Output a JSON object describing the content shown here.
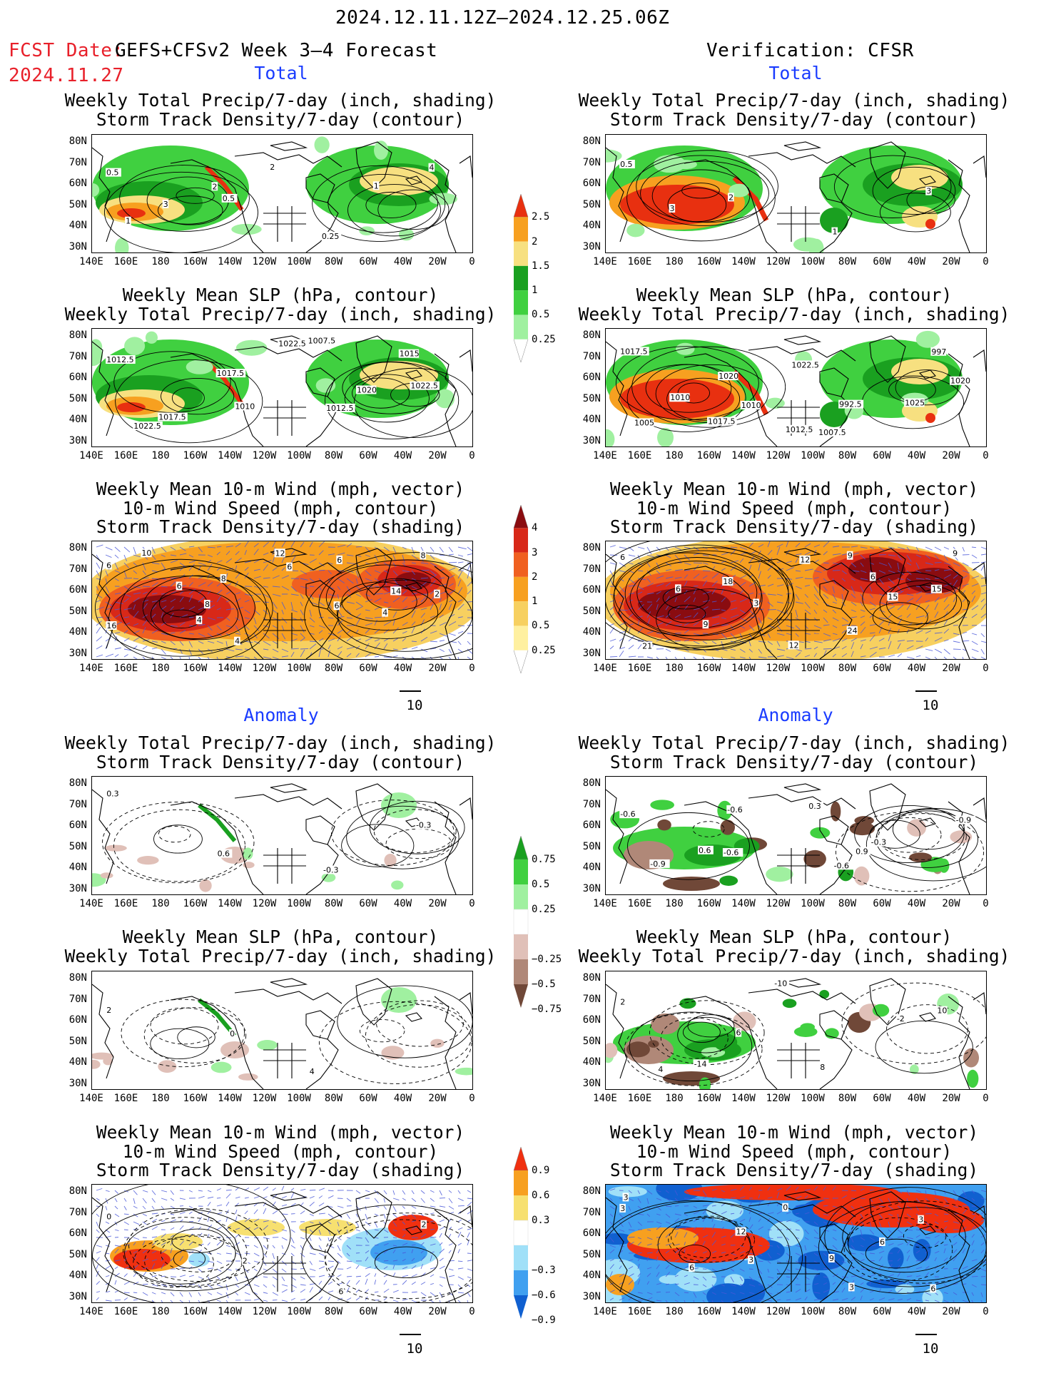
{
  "header": {
    "period": "2024.12.11.12Z–2024.12.25.06Z",
    "fcst_date_label": "FCST Date:",
    "fcst_date_value": "2024.11.27",
    "forecast_title": "GEFS+CFSv2 Week 3–4 Forecast",
    "verification": "Verification: CFSR"
  },
  "sections": {
    "total": "Total",
    "anomaly": "Anomaly"
  },
  "titles": {
    "precip_storm": [
      "Weekly Total Precip/7-day (inch, shading)",
      "Storm Track Density/7-day (contour)"
    ],
    "slp_precip": [
      "Weekly Mean SLP (hPa, contour)",
      "Weekly Total Precip/7-day (inch, shading)"
    ],
    "wind_storm": [
      "Weekly Mean 10-m Wind (mph, vector)",
      "10-m Wind Speed (mph, contour)",
      "Storm Track Density/7-day (shading)"
    ]
  },
  "axes": {
    "lat_labels": [
      "80N",
      "70N",
      "60N",
      "50N",
      "40N",
      "30N"
    ],
    "lon_labels": [
      "140E",
      "160E",
      "180",
      "160W",
      "140W",
      "120W",
      "100W",
      "80W",
      "60W",
      "40W",
      "20W",
      "0"
    ]
  },
  "vector_ref": "10",
  "colorbars": {
    "precip_total": {
      "levels": [
        "2.5",
        "2",
        "1.5",
        "1",
        "0.5",
        "0.25"
      ],
      "colors": [
        "#e83010",
        "#f7a020",
        "#f7e080",
        "#1aa020",
        "#40d040",
        "#a0f0a0"
      ]
    },
    "storm_total": {
      "levels": [
        "4",
        "3",
        "2",
        "1",
        "0.5",
        "0.25"
      ],
      "colors": [
        "#8a0c10",
        "#d82818",
        "#f06020",
        "#f7a020",
        "#f7d060",
        "#fff0a0"
      ]
    },
    "precip_anom": {
      "levels": [
        "0.75",
        "0.5",
        "0.25",
        "−0.25",
        "−0.5",
        "−0.75"
      ],
      "colors": [
        "#1aa020",
        "#40d040",
        "#a0f0a0",
        "#ffffff",
        "#e0c0b8",
        "#b08878",
        "#704838"
      ]
    },
    "storm_anom": {
      "levels": [
        "0.9",
        "0.6",
        "0.3",
        "−0.3",
        "−0.6",
        "−0.9"
      ],
      "colors": [
        "#f03010",
        "#f7a020",
        "#f7e070",
        "#ffffff",
        "#a0e0f8",
        "#40a0f0",
        "#1060d0"
      ]
    }
  },
  "contour_labels": {
    "r1c1": [
      "0.5",
      "0.5",
      "0.25",
      "4",
      "3",
      "2",
      "1",
      "1",
      "2"
    ],
    "r1c2": [
      "0.5",
      "2",
      "1",
      "3",
      "3"
    ],
    "r2c1": [
      "1012.5",
      "1010",
      "1007.5",
      "1022.5",
      "1017.5",
      "1022.5",
      "1020",
      "1022.5",
      "1017.5",
      "1012.5",
      "1015"
    ],
    "r2c2": [
      "1017.5",
      "1010",
      "1007.5",
      "1020",
      "1017.5",
      "1022.5",
      "1025",
      "1005",
      "1020",
      "992.5",
      "997",
      "1010",
      "1012.5"
    ],
    "r3c1": [
      "6",
      "8",
      "6",
      "2",
      "4",
      "6",
      "4",
      "10",
      "8",
      "6",
      "8",
      "6",
      "12",
      "14",
      "16",
      "4"
    ],
    "r3c2": [
      "6",
      "3",
      "9",
      "15",
      "9",
      "12",
      "15",
      "21",
      "18",
      "24",
      "9",
      "6",
      "12",
      "6"
    ],
    "r4c1": [
      "0.3",
      "0.6",
      "-0.3",
      "-0.3"
    ],
    "r4c2": [
      "-0.6",
      "-0.6",
      "-0.6",
      "-0.9",
      "0.6",
      "0.3",
      "-0.3",
      "-0.9",
      "-0.6",
      "0.9"
    ],
    "r5c1": [
      "2",
      "0",
      "4"
    ],
    "r5c2": [
      "2",
      "6",
      "8",
      "10",
      "-14",
      "-10",
      "-2",
      "4"
    ],
    "r6c1": [
      "0",
      "2",
      "6",
      "2"
    ],
    "r6c2": [
      "3",
      "3",
      "3",
      "3",
      "6",
      "0",
      "6",
      "3",
      "12",
      "9",
      "6"
    ]
  }
}
